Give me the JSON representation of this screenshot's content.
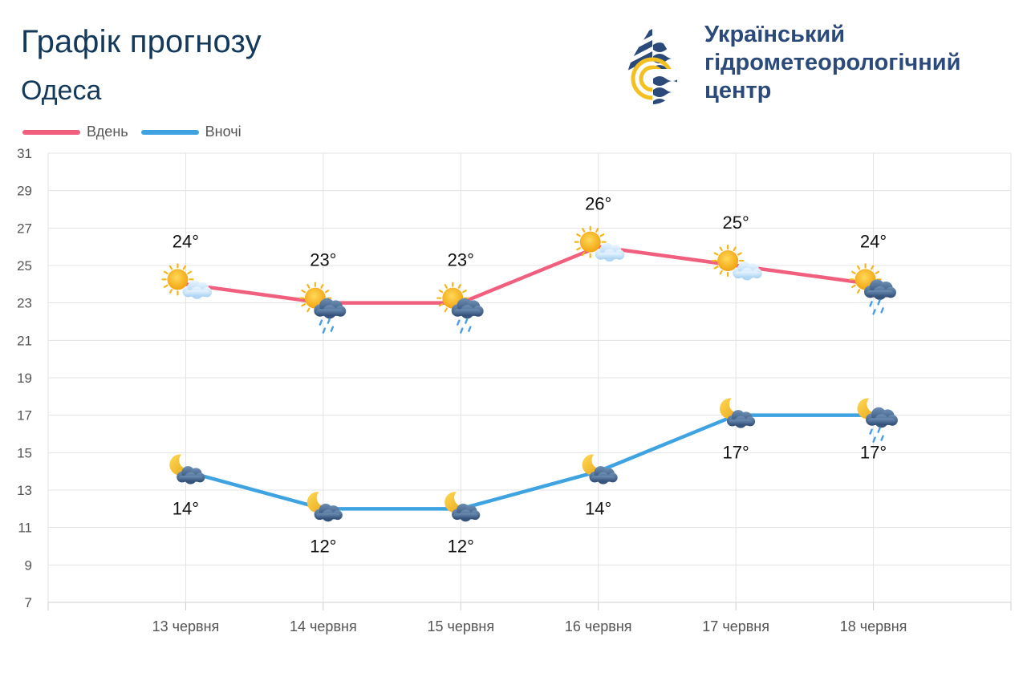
{
  "header": {
    "title": "Графік прогнозу",
    "city": "Одеса"
  },
  "organization": {
    "name_lines": [
      "Український",
      "гідрометеорологічний",
      "центр"
    ],
    "logo_icon": "water-drop-logo-icon"
  },
  "legend": [
    {
      "label": "Вдень",
      "color": "#f0607e"
    },
    {
      "label": "Вночі",
      "color": "#3fa3e2"
    }
  ],
  "chart_data": {
    "type": "line",
    "categories": [
      "13 червня",
      "14 червня",
      "15 червня",
      "16 червня",
      "17 червня",
      "18 червня"
    ],
    "ylim": [
      7,
      31
    ],
    "yticks": [
      7,
      9,
      11,
      13,
      15,
      17,
      19,
      21,
      23,
      25,
      27,
      29,
      31
    ],
    "grid": true,
    "legend_position": "top-left",
    "series": [
      {
        "name": "Вдень",
        "color": "#f0607e",
        "values": [
          24,
          23,
          23,
          26,
          25,
          24
        ],
        "labels": [
          "24°",
          "23°",
          "23°",
          "26°",
          "25°",
          "24°"
        ],
        "icons": [
          "sun-cloud-icon",
          "sun-rain-cloud-icon",
          "sun-rain-cloud-icon",
          "sun-cloud-icon",
          "sun-cloud-icon",
          "sun-rain-cloud-icon"
        ]
      },
      {
        "name": "Вночі",
        "color": "#3fa3e2",
        "values": [
          14,
          12,
          12,
          14,
          17,
          17
        ],
        "labels": [
          "14°",
          "12°",
          "12°",
          "14°",
          "17°",
          "17°"
        ],
        "icons": [
          "moon-cloud-icon",
          "moon-cloud-icon",
          "moon-cloud-icon",
          "moon-cloud-icon",
          "moon-cloud-icon",
          "moon-rain-cloud-icon"
        ]
      }
    ]
  }
}
